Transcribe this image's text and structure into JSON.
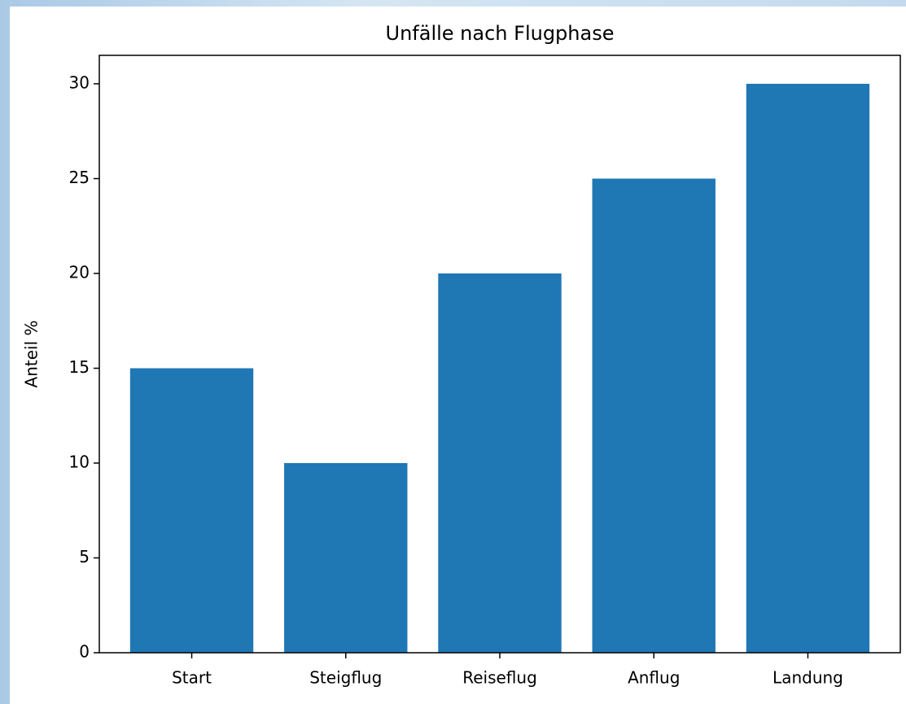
{
  "chart_data": {
    "type": "bar",
    "title": "Unfälle nach Flugphase",
    "ylabel": "Anteil %",
    "categories": [
      "Start",
      "Steigflug",
      "Reiseflug",
      "Anflug",
      "Landung"
    ],
    "values": [
      15,
      10,
      20,
      25,
      30
    ],
    "color": "#1f77b4",
    "ylim": [
      0,
      31.5
    ],
    "yticks": [
      0,
      5,
      10,
      15,
      20,
      25,
      30
    ],
    "grid": false
  }
}
